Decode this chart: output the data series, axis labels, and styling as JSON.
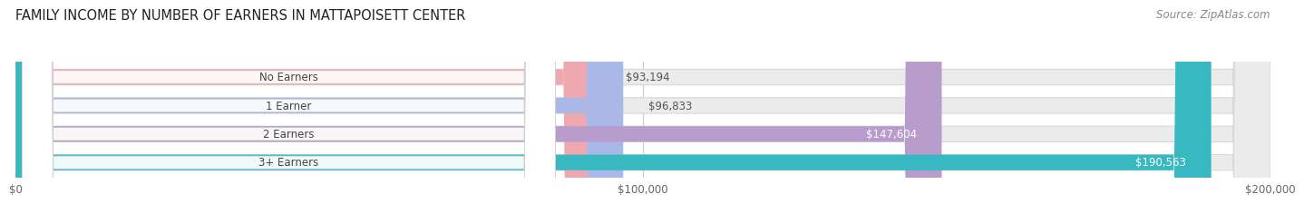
{
  "title": "FAMILY INCOME BY NUMBER OF EARNERS IN MATTAPOISETT CENTER",
  "source": "Source: ZipAtlas.com",
  "categories": [
    "No Earners",
    "1 Earner",
    "2 Earners",
    "3+ Earners"
  ],
  "values": [
    93194,
    96833,
    147604,
    190563
  ],
  "labels": [
    "$93,194",
    "$96,833",
    "$147,604",
    "$190,563"
  ],
  "bar_colors": [
    "#f0a8b0",
    "#aab8e8",
    "#b89ccc",
    "#38b8c0"
  ],
  "label_colors": [
    "#555555",
    "#555555",
    "#ffffff",
    "#ffffff"
  ],
  "xmax": 200000,
  "xticks": [
    0,
    100000,
    200000
  ],
  "xticklabels": [
    "$0",
    "$100,000",
    "$200,000"
  ],
  "background_color": "#ffffff",
  "bar_bg_color": "#ebebeb",
  "bar_bg_border_color": "#d8d8d8",
  "title_fontsize": 10.5,
  "source_fontsize": 8.5,
  "label_pill_color": "#ffffff",
  "label_pill_border": "#cccccc"
}
